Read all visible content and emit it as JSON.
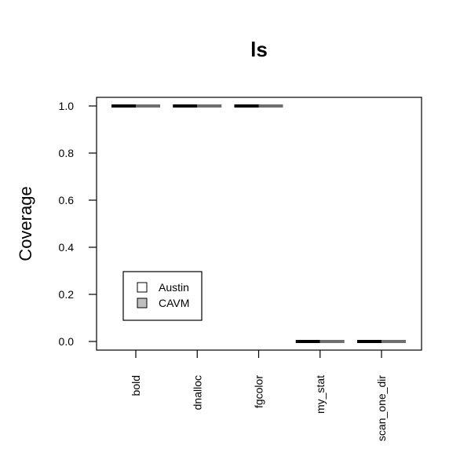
{
  "chart_data": {
    "type": "bar",
    "title": "ls",
    "xlabel": "",
    "ylabel": "Coverage",
    "ylim": [
      0,
      1
    ],
    "yticks": [
      "0.0",
      "0.2",
      "0.4",
      "0.6",
      "0.8",
      "1.0"
    ],
    "categories": [
      "bold",
      "dnalloc",
      "fgcolor",
      "my_stat",
      "scan_one_dir"
    ],
    "series": [
      {
        "name": "Austin",
        "values": [
          1.0,
          1.0,
          1.0,
          0.0,
          0.0
        ],
        "color": "#000000",
        "legend_fill": "#ffffff"
      },
      {
        "name": "CAVM",
        "values": [
          1.0,
          1.0,
          1.0,
          0.0,
          0.0
        ],
        "color": "#6e6e6e",
        "legend_fill": "#bebebe"
      }
    ],
    "legend_position": "bottom-left",
    "grid": false
  }
}
